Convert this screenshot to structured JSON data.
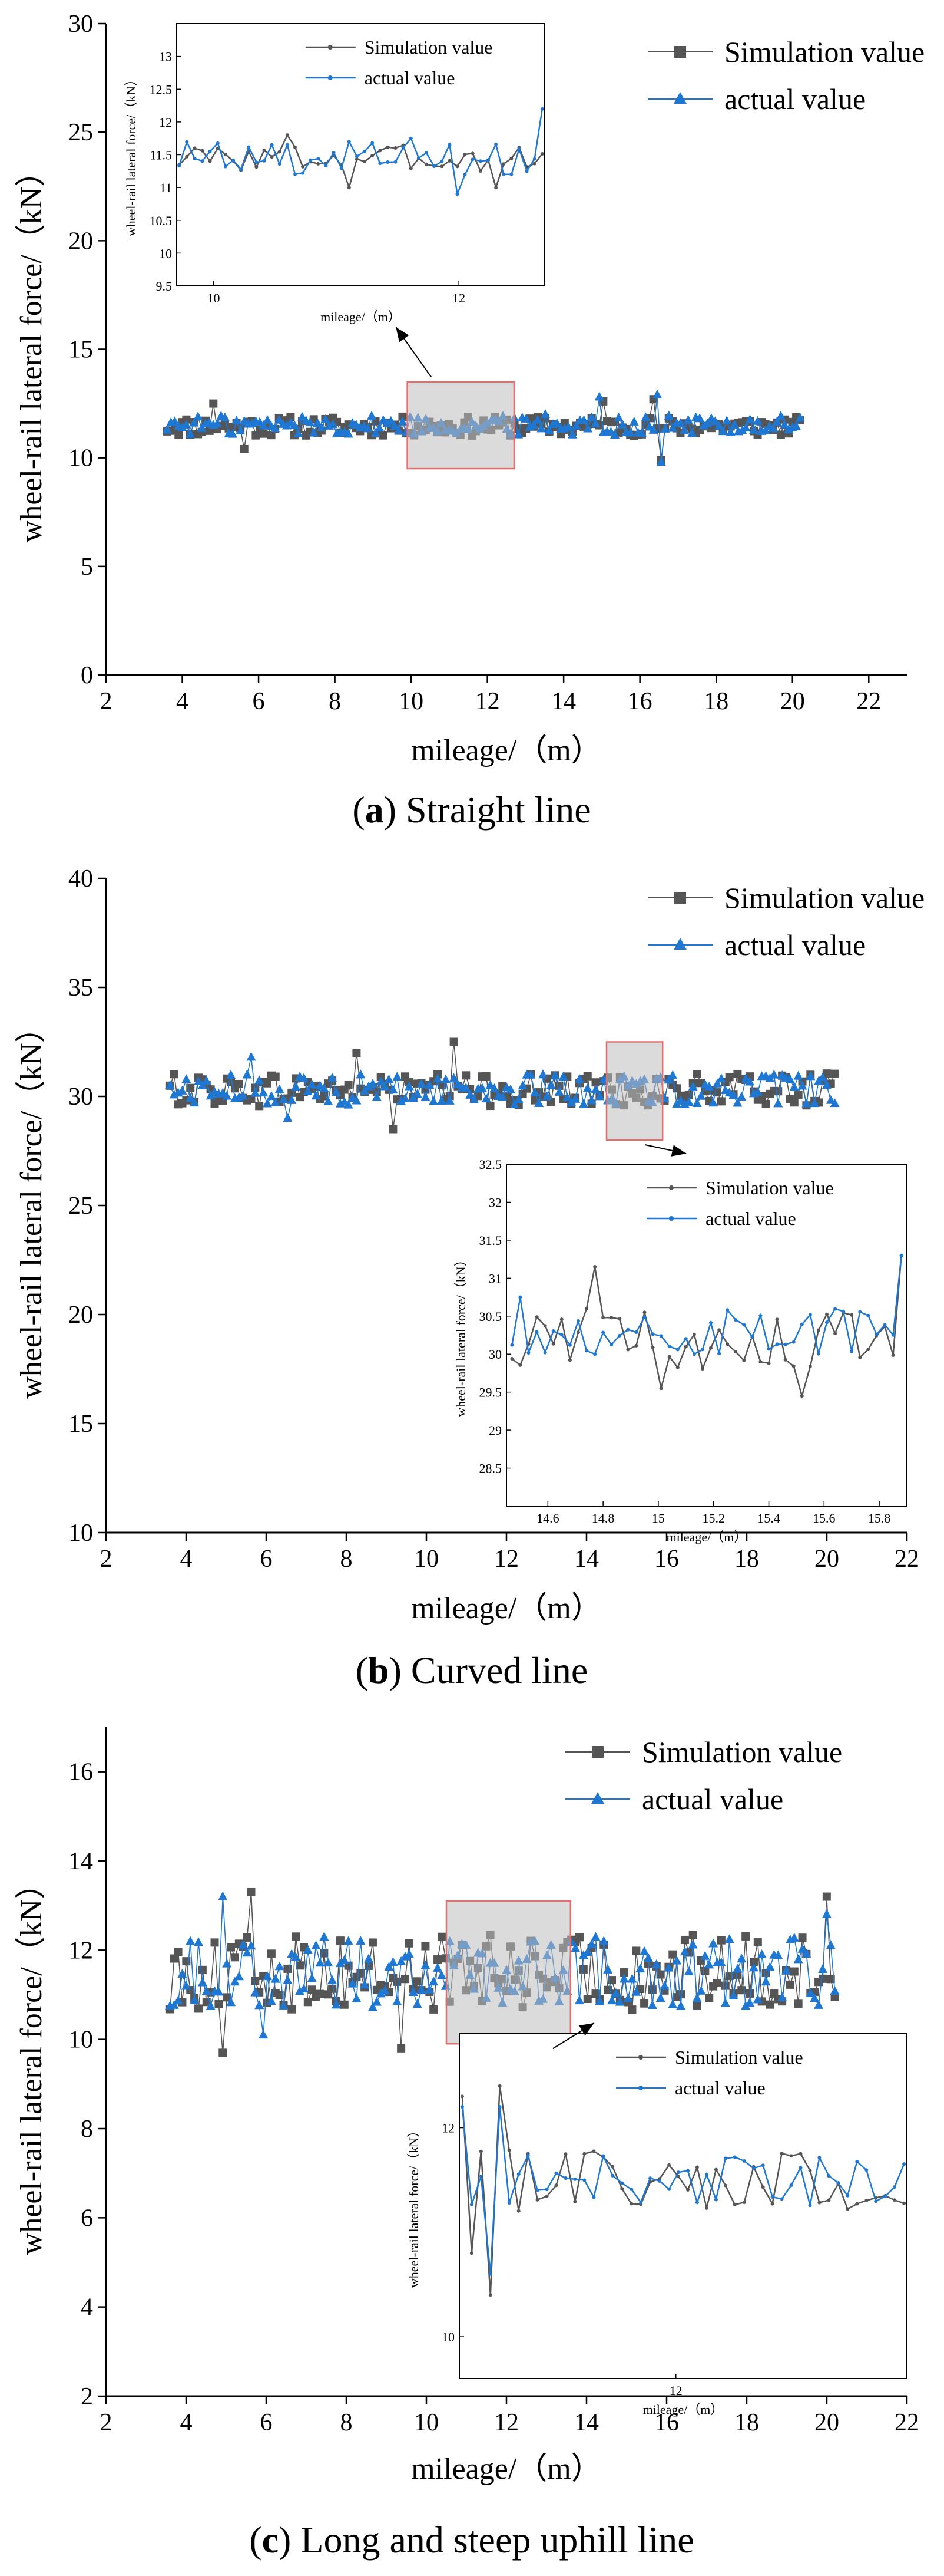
{
  "chart_data": [
    {
      "type": "line",
      "caption": "(a) Straight line",
      "caption_letter": "a",
      "caption_text": "Straight line",
      "xlabel": "mileage/（m）",
      "ylabel": "wheel-rail lateral force/（kN）",
      "xlim": [
        2,
        23
      ],
      "ylim": [
        0,
        30
      ],
      "xticks": [
        2,
        4,
        6,
        8,
        10,
        12,
        14,
        16,
        18,
        20,
        22
      ],
      "yticks": [
        0,
        5,
        10,
        15,
        20,
        25,
        30
      ],
      "x_range": [
        3.6,
        20.2
      ],
      "legend_position": "top-right",
      "series": [
        {
          "name": "Simulation value",
          "marker": "square",
          "color": "#555555",
          "mean": 11.45,
          "spread": 0.45,
          "peaks": [
            [
              4.8,
              12.5
            ],
            [
              5.6,
              10.4
            ],
            [
              15.0,
              12.6
            ],
            [
              16.4,
              12.7
            ],
            [
              16.6,
              9.9
            ]
          ]
        },
        {
          "name": "actual value",
          "marker": "triangle",
          "color": "#1f77d4",
          "mean": 11.5,
          "spread": 0.45,
          "peaks": [
            [
              14.9,
              12.8
            ],
            [
              16.5,
              12.9
            ],
            [
              16.6,
              9.8
            ],
            [
              13.5,
              12.0
            ]
          ]
        }
      ],
      "zoom_box": {
        "x": [
          9.9,
          12.7
        ],
        "y": [
          9.5,
          13.5
        ]
      },
      "inset": {
        "position": "top-left",
        "xlim": [
          9.7,
          12.7
        ],
        "ylim": [
          9.5,
          13.5
        ],
        "xticks": [
          10,
          12
        ],
        "yticks": [
          9.5,
          10.0,
          10.5,
          11.0,
          11.5,
          12.0,
          12.5,
          13.0
        ],
        "xlabel": "mileage/（m）",
        "ylabel": "wheel-rail lateral force/（kN）",
        "series": [
          {
            "name": "Simulation value",
            "color": "#555555",
            "mean": 11.45,
            "spread": 0.2,
            "peaks": [
              [
                10.6,
                11.8
              ],
              [
                11.1,
                11.0
              ],
              [
                12.3,
                11.0
              ]
            ]
          },
          {
            "name": "actual value",
            "color": "#1f77d4",
            "mean": 11.45,
            "spread": 0.25,
            "peaks": [
              [
                12.65,
                12.2
              ],
              [
                12.0,
                10.9
              ],
              [
                11.6,
                11.75
              ]
            ]
          }
        ]
      }
    },
    {
      "type": "line",
      "caption": "(b) Curved line",
      "caption_letter": "b",
      "caption_text": "Curved line",
      "xlabel": "mileage/（m）",
      "ylabel": "wheel-rail lateral force/（kN）",
      "xlim": [
        2,
        22
      ],
      "ylim": [
        10,
        40
      ],
      "xticks": [
        2,
        4,
        6,
        8,
        10,
        12,
        14,
        16,
        18,
        20,
        22
      ],
      "yticks": [
        10,
        15,
        20,
        25,
        30,
        35,
        40
      ],
      "x_range": [
        3.6,
        20.2
      ],
      "legend_position": "top-right",
      "series": [
        {
          "name": "Simulation value",
          "marker": "square",
          "color": "#555555",
          "mean": 30.3,
          "spread": 0.75,
          "peaks": [
            [
              10.7,
              32.5
            ],
            [
              9.2,
              28.5
            ],
            [
              8.3,
              32.0
            ]
          ]
        },
        {
          "name": "actual value",
          "marker": "triangle",
          "color": "#1f77d4",
          "mean": 30.3,
          "spread": 0.7,
          "peaks": [
            [
              5.6,
              31.8
            ],
            [
              6.5,
              29.0
            ]
          ]
        }
      ],
      "zoom_box": {
        "x": [
          14.5,
          15.9
        ],
        "y": [
          28.0,
          32.5
        ]
      },
      "inset": {
        "position": "lower-right",
        "xlim": [
          14.45,
          15.9
        ],
        "ylim": [
          28.0,
          32.5
        ],
        "xticks": [
          14.6,
          14.8,
          15.0,
          15.2,
          15.4,
          15.6,
          15.8
        ],
        "yticks": [
          28.5,
          29.0,
          29.5,
          30.0,
          30.5,
          31.0,
          31.5,
          32.0,
          32.5
        ],
        "xlabel": "mileage/（m）",
        "ylabel": "wheel-rail lateral force/（kN）",
        "series": [
          {
            "name": "Simulation value",
            "color": "#555555",
            "mean": 30.2,
            "spread": 0.4,
            "peaks": [
              [
                14.78,
                31.15
              ],
              [
                15.02,
                29.55
              ],
              [
                15.53,
                29.45
              ],
              [
                15.88,
                31.3
              ]
            ]
          },
          {
            "name": "actual value",
            "color": "#1f77d4",
            "mean": 30.3,
            "spread": 0.3,
            "peaks": [
              [
                14.5,
                30.75
              ],
              [
                15.88,
                31.3
              ],
              [
                15.12,
                30.0
              ]
            ]
          }
        ]
      }
    },
    {
      "type": "line",
      "caption": "(c) Long and steep uphill line",
      "caption_letter": "c",
      "caption_text": "Long and steep uphill line",
      "xlabel": "mileage/（m）",
      "ylabel": "wheel-rail lateral force/（kN）",
      "xlim": [
        2,
        22
      ],
      "ylim": [
        2,
        17
      ],
      "xticks": [
        2,
        4,
        6,
        8,
        10,
        12,
        14,
        16,
        18,
        20,
        22
      ],
      "yticks": [
        2,
        4,
        6,
        8,
        10,
        12,
        14,
        16
      ],
      "x_range": [
        3.6,
        20.2
      ],
      "legend_position": "top-right",
      "series": [
        {
          "name": "Simulation value",
          "marker": "square",
          "color": "#555555",
          "mean": 11.5,
          "spread": 0.85,
          "peaks": [
            [
              5.6,
              13.3
            ],
            [
              20.0,
              13.2
            ],
            [
              9.4,
              9.8
            ],
            [
              4.9,
              9.7
            ]
          ]
        },
        {
          "name": "actual value",
          "marker": "triangle",
          "color": "#1f77d4",
          "mean": 11.5,
          "spread": 0.8,
          "peaks": [
            [
              4.9,
              13.2
            ],
            [
              20.0,
              12.8
            ],
            [
              5.9,
              10.1
            ]
          ]
        }
      ],
      "zoom_box": {
        "x": [
          10.5,
          13.6
        ],
        "y": [
          9.9,
          13.1
        ]
      },
      "inset": {
        "position": "lower-right",
        "xlim": [
          10.5,
          13.6
        ],
        "ylim": [
          9.6,
          12.9
        ],
        "xticks": [
          12
        ],
        "yticks": [
          10,
          12
        ],
        "xlabel": "mileage/（m）",
        "ylabel": "wheel-rail lateral force/（kN）",
        "series": [
          {
            "name": "Simulation value",
            "color": "#555555",
            "mean": 11.5,
            "spread": 0.3,
            "peaks": [
              [
                10.72,
                10.4
              ],
              [
                10.8,
                12.4
              ],
              [
                10.6,
                10.8
              ],
              [
                10.5,
                12.3
              ]
            ]
          },
          {
            "name": "actual value",
            "color": "#1f77d4",
            "mean": 11.5,
            "spread": 0.25,
            "peaks": [
              [
                10.52,
                12.2
              ],
              [
                10.7,
                10.6
              ],
              [
                10.78,
                12.2
              ]
            ]
          }
        ]
      }
    }
  ]
}
